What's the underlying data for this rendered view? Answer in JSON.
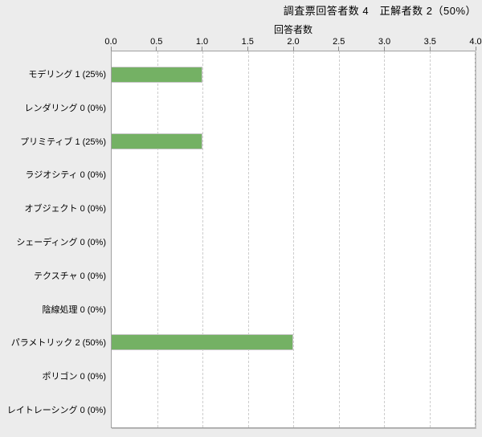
{
  "title": "調査票回答者数 4　正解者数 2（50%）",
  "colors": {
    "background": "#ececec",
    "plot_background": "#ffffff",
    "plot_border": "#a0a0a0",
    "grid": "#cdcdcd",
    "bar_fill": "#74b164",
    "bar_border": "#c6c6c6"
  },
  "chart_data": {
    "type": "bar",
    "orientation": "horizontal",
    "title": "調査票回答者数 4　正解者数 2（50%）",
    "xlabel": "回答者数",
    "xlim": [
      0,
      4
    ],
    "xticks": [
      "0.0",
      "0.5",
      "1.0",
      "1.5",
      "2.0",
      "2.5",
      "3.0",
      "3.5",
      "4.0"
    ],
    "grid": true,
    "legend": "none",
    "categories": [
      "モデリング",
      "レンダリング",
      "プリミティブ",
      "ラジオシティ",
      "オブジェクト",
      "シェーディング",
      "テクスチャ",
      "陰線処理",
      "パラメトリック",
      "ポリゴン",
      "レイトレーシング"
    ],
    "values": [
      1,
      0,
      1,
      0,
      0,
      0,
      0,
      0,
      2,
      0,
      0
    ],
    "percents": [
      "25%",
      "0%",
      "25%",
      "0%",
      "0%",
      "0%",
      "0%",
      "0%",
      "50%",
      "0%",
      "0%"
    ],
    "category_labels": [
      "モデリング 1 (25%)",
      "レンダリング 0 (0%)",
      "プリミティブ 1 (25%)",
      "ラジオシティ 0 (0%)",
      "オブジェクト 0 (0%)",
      "シェーディング 0 (0%)",
      "テクスチャ 0 (0%)",
      "陰線処理 0 (0%)",
      "パラメトリック 2 (50%)",
      "ポリゴン 0 (0%)",
      "レイトレーシング 0 (0%)"
    ]
  }
}
